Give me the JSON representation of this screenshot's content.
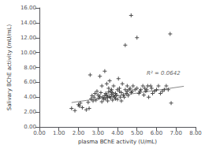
{
  "chart_data": {
    "type": "scatter",
    "title": "",
    "xlabel": "plasma BChE activity (U/mL)",
    "ylabel": "Salivary BChE activity (mU/mL)",
    "xlim": [
      0.0,
      8.0
    ],
    "ylim": [
      0.0,
      16.0
    ],
    "xticks": [
      {
        "value": 0,
        "label": "0.00"
      },
      {
        "value": 1,
        "label": "1.00"
      },
      {
        "value": 2,
        "label": "2.00"
      },
      {
        "value": 3,
        "label": "3.00"
      },
      {
        "value": 4,
        "label": "4.00"
      },
      {
        "value": 5,
        "label": "5.00"
      },
      {
        "value": 6,
        "label": "6.00"
      },
      {
        "value": 7,
        "label": "7.00"
      },
      {
        "value": 8,
        "label": "8.00"
      }
    ],
    "yticks": [
      {
        "value": 0,
        "label": "0.00"
      },
      {
        "value": 2,
        "label": "2.00"
      },
      {
        "value": 4,
        "label": "4.00"
      },
      {
        "value": 6,
        "label": "6.00"
      },
      {
        "value": 8,
        "label": "8.00"
      },
      {
        "value": 10,
        "label": "10.00"
      },
      {
        "value": 12,
        "label": "12.00"
      },
      {
        "value": 14,
        "label": "14.00"
      },
      {
        "value": 16,
        "label": "16.00"
      }
    ],
    "grid": false,
    "annotations": [
      {
        "text": "R² = 0.0642",
        "x": 5.5,
        "y": 7.2
      }
    ],
    "series": [
      {
        "type": "scatter",
        "color": "#222222",
        "marker": "plus",
        "x": [
          1.65,
          1.82,
          2.0,
          2.05,
          2.1,
          2.2,
          2.4,
          2.5,
          2.55,
          2.6,
          2.65,
          2.7,
          2.75,
          2.8,
          2.85,
          2.9,
          2.95,
          3.0,
          3.05,
          3.1,
          3.1,
          3.15,
          3.2,
          3.2,
          3.25,
          3.3,
          3.35,
          3.35,
          3.4,
          3.4,
          3.45,
          3.45,
          3.5,
          3.5,
          3.55,
          3.55,
          3.6,
          3.6,
          3.65,
          3.65,
          3.7,
          3.7,
          3.75,
          3.75,
          3.8,
          3.8,
          3.85,
          3.9,
          3.9,
          3.95,
          4.0,
          4.0,
          4.05,
          4.1,
          4.1,
          4.15,
          4.2,
          4.2,
          4.25,
          4.3,
          4.35,
          4.4,
          4.4,
          4.45,
          4.5,
          4.5,
          4.55,
          4.6,
          4.65,
          4.7,
          4.7,
          4.75,
          4.8,
          4.9,
          5.0,
          5.0,
          5.1,
          5.15,
          5.2,
          5.3,
          5.35,
          5.4,
          5.45,
          5.5,
          5.55,
          5.6,
          5.7,
          5.75,
          5.8,
          5.9,
          6.0,
          6.1,
          6.2,
          6.3,
          6.4,
          6.5,
          6.6,
          6.7,
          6.75
        ],
        "values": [
          2.5,
          2.2,
          3.0,
          2.8,
          3.2,
          2.6,
          2.3,
          3.3,
          2.5,
          7.0,
          3.8,
          4.2,
          3.5,
          4.0,
          4.5,
          3.6,
          4.8,
          4.3,
          3.9,
          4.1,
          6.8,
          4.6,
          3.4,
          5.5,
          4.0,
          3.7,
          4.2,
          7.5,
          4.5,
          3.8,
          4.3,
          5.8,
          3.5,
          4.0,
          4.7,
          5.2,
          4.1,
          6.2,
          3.9,
          4.8,
          4.4,
          5.0,
          3.6,
          4.6,
          4.2,
          5.5,
          4.0,
          4.5,
          3.8,
          4.3,
          5.0,
          3.7,
          6.5,
          4.8,
          5.2,
          4.0,
          4.6,
          3.5,
          5.8,
          4.3,
          4.0,
          5.0,
          11.0,
          4.5,
          4.8,
          5.5,
          4.2,
          5.0,
          5.2,
          4.6,
          15.0,
          4.8,
          5.5,
          5.0,
          5.2,
          12.0,
          4.5,
          4.8,
          5.0,
          5.5,
          4.3,
          5.2,
          4.8,
          5.0,
          5.5,
          4.0,
          5.5,
          5.2,
          4.5,
          4.8,
          5.0,
          5.5,
          4.5,
          4.8,
          5.0,
          5.5,
          5.0,
          12.5,
          3.2
        ]
      },
      {
        "type": "line",
        "color": "#888888",
        "x": [
          1.65,
          7.4
        ],
        "values": [
          3.277,
          5.462
        ]
      }
    ]
  }
}
